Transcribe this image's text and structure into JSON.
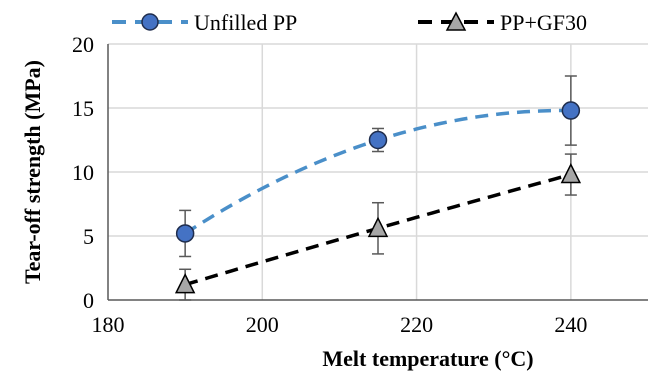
{
  "chart_data": {
    "type": "scatter",
    "xlabel": "Melt temperature (°C)",
    "ylabel": "Tear-off strength (MPa)",
    "xlim": [
      180,
      250
    ],
    "ylim": [
      0,
      20
    ],
    "x_ticks": [
      180,
      200,
      220,
      240
    ],
    "y_ticks": [
      0,
      5,
      10,
      15,
      20
    ],
    "grid": true,
    "legend_position": "top",
    "series": [
      {
        "name": "Unfilled PP",
        "marker": "circle",
        "color": "#4472c4",
        "line_color": "#4a8fc9",
        "x": [
          190,
          215,
          240
        ],
        "y": [
          5.2,
          12.5,
          14.8
        ],
        "error": [
          1.8,
          0.9,
          2.7
        ],
        "trend": "polynomial"
      },
      {
        "name": "PP+GF30",
        "marker": "triangle",
        "color": "#a6a6a6",
        "line_color": "#000000",
        "x": [
          190,
          215,
          240
        ],
        "y": [
          1.2,
          5.6,
          9.8
        ],
        "error": [
          1.2,
          2.0,
          1.6
        ],
        "trend": "polynomial"
      }
    ]
  }
}
